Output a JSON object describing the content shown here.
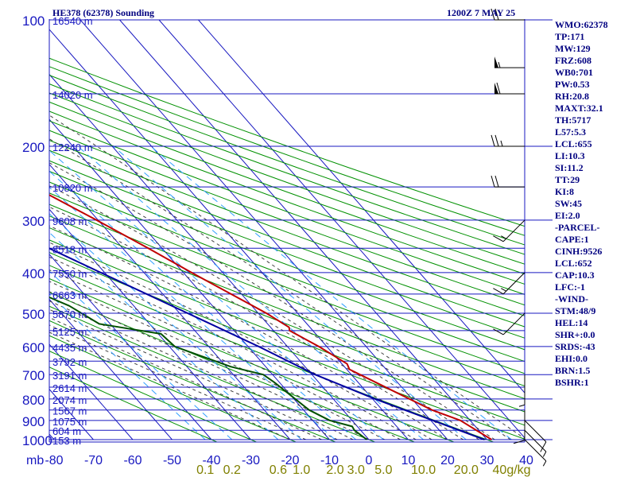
{
  "header": {
    "title": "HE378 (62378) Sounding",
    "datetime": "1200Z  7 MAY 25"
  },
  "indices": [
    "WMO:62378",
    "TP:171",
    "MW:129",
    "FRZ:608",
    "WB0:701",
    "PW:0.53",
    "RH:20.8",
    "MAXT:32.1",
    "TH:5717",
    "L57:5.3",
    "LCL:655",
    "LI:10.3",
    "SI:11.2",
    "TT:29",
    "KI:8",
    "SW:45",
    "EI:2.0",
    "-PARCEL-",
    "CAPE:1",
    "CINH:9526",
    "LCL:652",
    "CAP:10.3",
    "LFC:-1",
    "-WIND-",
    "STM:48/9",
    "HEL:14",
    "SHR+:0.0",
    "SRDS:-43",
    "EHI:0.0",
    "BRN:1.5",
    "BSHR:1"
  ],
  "colors": {
    "isobar": "#1818c0",
    "isotherm": "#1818c0",
    "dry_adiabat": "#009000",
    "moist_adiabat": "#404040",
    "mixing_ratio": "#30a0ff",
    "temperature": "#c00000",
    "dewpoint": "#005000",
    "parcel": "#0000a0",
    "labels": "#1818c0",
    "mixing_labels": "#808000"
  },
  "chart_data": {
    "type": "line",
    "title": "HE378 (62378) Sounding",
    "y_axis_label": "mb",
    "pressure_levels": [
      100,
      200,
      300,
      400,
      500,
      600,
      700,
      800,
      900,
      1000
    ],
    "temperature_ticks": [
      -80,
      -70,
      -60,
      -50,
      -40,
      -30,
      -20,
      -10,
      0,
      10,
      20,
      30,
      40
    ],
    "mixing_ratio_labels": [
      "0.1",
      "0.2",
      "0.6",
      "1.0",
      "2.0",
      "3.0",
      "5.0",
      "10.0",
      "20.0",
      "40g/kg"
    ],
    "mixing_ratio_values": [
      0.1,
      0.2,
      0.6,
      1.0,
      2.0,
      3.0,
      5.0,
      10.0,
      20.0,
      40.0
    ],
    "height_labels": [
      {
        "p": 1000,
        "h": "153 m"
      },
      {
        "p": 950,
        "h": "604 m"
      },
      {
        "p": 900,
        "h": "1075 m"
      },
      {
        "p": 850,
        "h": "1567 m"
      },
      {
        "p": 800,
        "h": "2074 m"
      },
      {
        "p": 750,
        "h": "2614 m"
      },
      {
        "p": 700,
        "h": "3191 m"
      },
      {
        "p": 650,
        "h": "3792 m"
      },
      {
        "p": 600,
        "h": "4435 m"
      },
      {
        "p": 550,
        "h": "5125 m"
      },
      {
        "p": 500,
        "h": "5870 m"
      },
      {
        "p": 450,
        "h": "6663 m"
      },
      {
        "p": 400,
        "h": "7550 m"
      },
      {
        "p": 350,
        "h": "8518 m"
      },
      {
        "p": 300,
        "h": "9608 m"
      },
      {
        "p": 250,
        "h": "10820 m"
      },
      {
        "p": 200,
        "h": "12240 m"
      },
      {
        "p": 150,
        "h": "14020 m"
      },
      {
        "p": 100,
        "h": "16540 m"
      }
    ],
    "series": [
      {
        "id": "temperature",
        "points": [
          {
            "p": 1000,
            "t": 31.2
          },
          {
            "p": 900,
            "t": 27.5
          },
          {
            "p": 850,
            "t": 22.6
          },
          {
            "p": 700,
            "t": 12.2
          },
          {
            "p": 680,
            "t": 10.7
          },
          {
            "p": 660,
            "t": 11.3
          },
          {
            "p": 600,
            "t": 8.0
          },
          {
            "p": 550,
            "t": 4.1
          },
          {
            "p": 540,
            "t": 4.7
          },
          {
            "p": 500,
            "t": 2.1
          },
          {
            "p": 400,
            "t": -7.9
          },
          {
            "p": 350,
            "t": -13.5
          },
          {
            "p": 300,
            "t": -20.4
          },
          {
            "p": 250,
            "t": -28.9
          },
          {
            "p": 220,
            "t": -36.2
          },
          {
            "p": 200,
            "t": -42.1
          },
          {
            "p": 170,
            "t": -48.7
          },
          {
            "p": 150,
            "t": -53.6
          },
          {
            "p": 140,
            "t": -57.8
          },
          {
            "p": 130,
            "t": -60.2
          },
          {
            "p": 120,
            "t": -63.2
          },
          {
            "p": 100,
            "t": -70.0
          }
        ]
      },
      {
        "id": "dewpoint",
        "points": [
          {
            "p": 1000,
            "t": -0.5
          },
          {
            "p": 950,
            "t": -1.6
          },
          {
            "p": 930,
            "t": -1.3
          },
          {
            "p": 900,
            "t": -5.7
          },
          {
            "p": 850,
            "t": -8.6
          },
          {
            "p": 730,
            "t": -11.3
          },
          {
            "p": 700,
            "t": -12.4
          },
          {
            "p": 670,
            "t": -18.9
          },
          {
            "p": 600,
            "t": -28.6
          },
          {
            "p": 560,
            "t": -29.3
          },
          {
            "p": 540,
            "t": -38.2
          },
          {
            "p": 530,
            "t": -42.8
          },
          {
            "p": 480,
            "t": -46.4
          },
          {
            "p": 410,
            "t": -57.1
          },
          {
            "p": 370,
            "t": -59.9
          },
          {
            "p": 350,
            "t": -54.8
          },
          {
            "p": 330,
            "t": -61.2
          },
          {
            "p": 300,
            "t": -63.1
          },
          {
            "p": 290,
            "t": -63.2
          },
          {
            "p": 270,
            "t": -67.4
          },
          {
            "p": 260,
            "t": -67.6
          },
          {
            "p": 240,
            "t": -70.3
          },
          {
            "p": 220,
            "t": -70.6
          },
          {
            "p": 200,
            "t": -76.0
          },
          {
            "p": 180,
            "t": -76.7
          },
          {
            "p": 170,
            "t": -82.5
          },
          {
            "p": 160,
            "t": -84.5
          }
        ]
      },
      {
        "id": "parcel",
        "points": [
          {
            "p": 1000,
            "t": 29.4
          },
          {
            "p": 900,
            "t": 20.5
          },
          {
            "p": 800,
            "t": 10.6
          },
          {
            "p": 700,
            "t": 0.8
          },
          {
            "p": 600,
            "t": -7.3
          },
          {
            "p": 500,
            "t": -17.9
          },
          {
            "p": 400,
            "t": -31.0
          },
          {
            "p": 300,
            "t": -47.6
          },
          {
            "p": 200,
            "t": -68.6
          },
          {
            "p": 180,
            "t": -73.7
          },
          {
            "p": 170,
            "t": -76.7
          }
        ]
      }
    ],
    "wind_barbs": [
      {
        "p": 1000,
        "dir": "SE",
        "knots": 5
      },
      {
        "p": 950,
        "dir": "SE",
        "knots": 5
      },
      {
        "p": 900,
        "dir": "SE",
        "knots": 10
      },
      {
        "p": 850,
        "dir": "S",
        "knots": 10
      },
      {
        "p": 700,
        "dir": "S",
        "knots": 5
      },
      {
        "p": 500,
        "dir": "SW",
        "knots": 10
      },
      {
        "p": 400,
        "dir": "SW",
        "knots": 15
      },
      {
        "p": 300,
        "dir": "SW",
        "knots": 15
      },
      {
        "p": 250,
        "dir": "W",
        "knots": 20
      },
      {
        "p": 200,
        "dir": "W",
        "knots": 25
      },
      {
        "p": 150,
        "dir": "W",
        "knots": 60
      },
      {
        "p": 130,
        "dir": "W",
        "knots": 55
      },
      {
        "p": 100,
        "dir": "W",
        "knots": 20
      }
    ]
  }
}
